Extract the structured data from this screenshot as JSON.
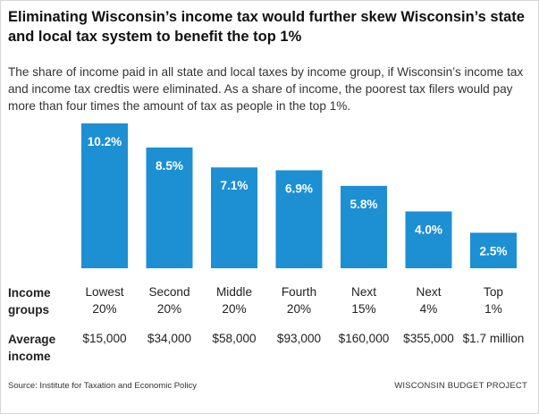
{
  "title": "Eliminating Wisconsin’s income tax would further skew Wisconsin’s state and local tax system to benefit the top 1%",
  "subtitle": "The share of income paid in all state and local taxes by income group, if Wisconsin’s income tax and income tax credtis were eliminated. As a share of income, the poorest tax filers would pay more than four times the amount of tax as people in the top 1%.",
  "row_labels": {
    "groups_line1": "Income",
    "groups_line2": "groups",
    "income_line1": "Average",
    "income_line2": "income"
  },
  "source": "Source: Institute for Taxation and Economic Policy",
  "org": "WISCONSIN BUDGET PROJECT",
  "colors": {
    "bar": "#1d8fd3",
    "bar_label": "#ffffff"
  },
  "chart_data": {
    "type": "bar",
    "categories": [
      [
        "Lowest",
        "20%"
      ],
      [
        "Second",
        "20%"
      ],
      [
        "Middle",
        "20%"
      ],
      [
        "Fourth",
        "20%"
      ],
      [
        "Next",
        "15%"
      ],
      [
        "Next",
        "4%"
      ],
      [
        "Top",
        "1%"
      ]
    ],
    "values": [
      10.2,
      8.5,
      7.1,
      6.9,
      5.8,
      4.0,
      2.5
    ],
    "value_labels": [
      "10.2%",
      "8.5%",
      "7.1%",
      "6.9%",
      "5.8%",
      "4.0%",
      "2.5%"
    ],
    "average_income": [
      "$15,000",
      "$34,000",
      "$58,000",
      "$93,000",
      "$160,000",
      "$355,000",
      "$1.7 million"
    ],
    "ylim": [
      0,
      10.2
    ],
    "grid": false,
    "legend": "none"
  }
}
